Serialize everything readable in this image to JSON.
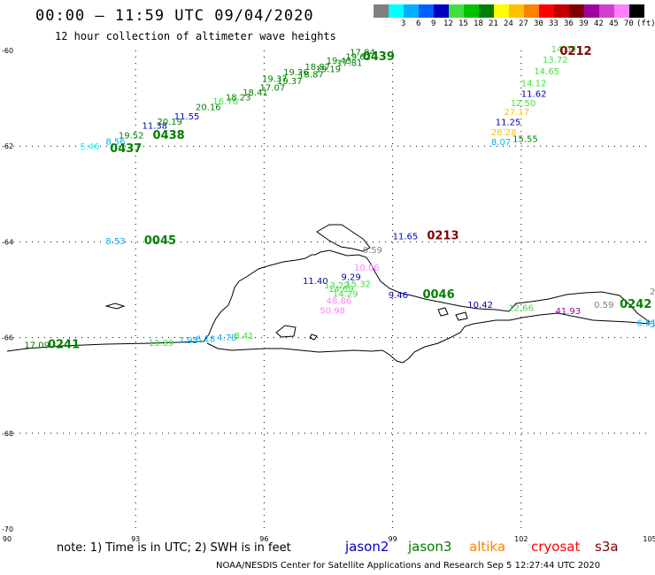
{
  "header": {
    "title": "00:00 – 11:59 UTC 09/04/2020",
    "subtitle": "12 hour collection of altimeter wave heights"
  },
  "colorbar": {
    "unit": "(ft)",
    "bins": [
      {
        "color": "#808080",
        "label": ""
      },
      {
        "color": "#00ffff",
        "label": "3"
      },
      {
        "color": "#00b0ff",
        "label": "6"
      },
      {
        "color": "#0060ff",
        "label": "9"
      },
      {
        "color": "#0000c0",
        "label": "12"
      },
      {
        "color": "#40e040",
        "label": "15"
      },
      {
        "color": "#00c000",
        "label": "18"
      },
      {
        "color": "#008000",
        "label": "21"
      },
      {
        "color": "#ffff00",
        "label": "24"
      },
      {
        "color": "#ffc000",
        "label": "27"
      },
      {
        "color": "#ff8000",
        "label": "30"
      },
      {
        "color": "#ff0000",
        "label": "33"
      },
      {
        "color": "#c00000",
        "label": "36"
      },
      {
        "color": "#800000",
        "label": "39"
      },
      {
        "color": "#a000a0",
        "label": "42"
      },
      {
        "color": "#d040d0",
        "label": "45"
      },
      {
        "color": "#ff80ff",
        "label": "70"
      },
      {
        "color": "#000000",
        "label": ""
      }
    ]
  },
  "axes": {
    "lon_ticks": [
      "90",
      "93",
      "96",
      "99",
      "102",
      "105"
    ],
    "lat_ticks": [
      "-60",
      "-62",
      "-64",
      "-66",
      "-68",
      "-70"
    ],
    "lon_range": [
      90,
      105
    ],
    "lat_range": [
      -60,
      -70
    ]
  },
  "observations": [
    {
      "lon": 90.4,
      "lat": -66.22,
      "v": "17.09",
      "c": "#008000"
    },
    {
      "lon": 93.3,
      "lat": -66.17,
      "v": "13.89",
      "c": "#40e040"
    },
    {
      "lon": 94.0,
      "lat": -66.12,
      "v": "7.95",
      "c": "#00b0ff"
    },
    {
      "lon": 94.4,
      "lat": -66.09,
      "v": "6.18",
      "c": "#00b0ff"
    },
    {
      "lon": 94.9,
      "lat": -66.06,
      "v": "4.78",
      "c": "#00b0ff"
    },
    {
      "lon": 95.3,
      "lat": -66.03,
      "v": "8.41",
      "c": "#40e040"
    },
    {
      "lon": 91.7,
      "lat": -62.07,
      "v": "5.46",
      "c": "#00ffff"
    },
    {
      "lon": 92.3,
      "lat": -61.97,
      "v": "8.56",
      "c": "#00b0ff"
    },
    {
      "lon": 92.6,
      "lat": -61.84,
      "v": "19.52",
      "c": "#008000"
    },
    {
      "lon": 93.15,
      "lat": -61.64,
      "v": "11.38",
      "c": "#0000c0"
    },
    {
      "lon": 93.5,
      "lat": -61.55,
      "v": "20.19",
      "c": "#008000"
    },
    {
      "lon": 93.9,
      "lat": -61.44,
      "v": "11.55",
      "c": "#0000c0"
    },
    {
      "lon": 94.4,
      "lat": -61.25,
      "v": "20.16",
      "c": "#008000"
    },
    {
      "lon": 94.8,
      "lat": -61.13,
      "v": "16.76",
      "c": "#40e040"
    },
    {
      "lon": 95.1,
      "lat": -61.04,
      "v": "18.23",
      "c": "#008000"
    },
    {
      "lon": 95.5,
      "lat": -60.94,
      "v": "18.41",
      "c": "#008000"
    },
    {
      "lon": 95.9,
      "lat": -60.84,
      "v": "17.07",
      "c": "#008000"
    },
    {
      "lon": 96.3,
      "lat": -60.7,
      "v": "19.37",
      "c": "#008000"
    },
    {
      "lon": 96.8,
      "lat": -60.56,
      "v": "18.87",
      "c": "#008000"
    },
    {
      "lon": 97.2,
      "lat": -60.45,
      "v": "19.19",
      "c": "#008000"
    },
    {
      "lon": 97.7,
      "lat": -60.32,
      "v": "17.81",
      "c": "#008000"
    },
    {
      "lon": 95.95,
      "lat": -60.66,
      "v": "19.37",
      "c": "#008000"
    },
    {
      "lon": 96.45,
      "lat": -60.52,
      "v": "19.26",
      "c": "#008000"
    },
    {
      "lon": 96.95,
      "lat": -60.41,
      "v": "18.87",
      "c": "#008000"
    },
    {
      "lon": 97.45,
      "lat": -60.28,
      "v": "19.43",
      "c": "#008000"
    },
    {
      "lon": 97.9,
      "lat": -60.19,
      "v": "19.62",
      "c": "#008000"
    },
    {
      "lon": 98.0,
      "lat": -60.1,
      "v": "17.84",
      "c": "#008000"
    },
    {
      "lon": 101.8,
      "lat": -61.91,
      "v": "15.55",
      "c": "#008000"
    },
    {
      "lon": 101.3,
      "lat": -61.98,
      "v": "8.07",
      "c": "#00b0ff"
    },
    {
      "lon": 101.3,
      "lat": -61.77,
      "v": "28.28",
      "c": "#ffc000"
    },
    {
      "lon": 101.4,
      "lat": -61.56,
      "v": "11.25",
      "c": "#0000c0"
    },
    {
      "lon": 101.6,
      "lat": -61.35,
      "v": "27.17",
      "c": "#ffc000"
    },
    {
      "lon": 101.75,
      "lat": -61.16,
      "v": "12.50",
      "c": "#40e040"
    },
    {
      "lon": 102.0,
      "lat": -60.97,
      "v": "11.62",
      "c": "#0000c0"
    },
    {
      "lon": 102.0,
      "lat": -60.75,
      "v": "14.12",
      "c": "#40e040"
    },
    {
      "lon": 102.3,
      "lat": -60.5,
      "v": "14.65",
      "c": "#40e040"
    },
    {
      "lon": 102.5,
      "lat": -60.26,
      "v": "13.72",
      "c": "#40e040"
    },
    {
      "lon": 102.7,
      "lat": -60.04,
      "v": "14.08",
      "c": "#40e040"
    },
    {
      "lon": 92.3,
      "lat": -64.05,
      "v": "8.53",
      "c": "#00b0ff"
    },
    {
      "lon": 98.3,
      "lat": -64.23,
      "v": "0.59",
      "c": "#808080"
    },
    {
      "lon": 97.8,
      "lat": -64.8,
      "v": "9.29",
      "c": "#0000c0"
    },
    {
      "lon": 98.1,
      "lat": -64.6,
      "v": "10.06",
      "c": "#ff80ff"
    },
    {
      "lon": 96.9,
      "lat": -64.88,
      "v": "11.40",
      "c": "#0000c0"
    },
    {
      "lon": 97.4,
      "lat": -64.97,
      "v": "13.22",
      "c": "#40e040"
    },
    {
      "lon": 97.5,
      "lat": -65.05,
      "v": "14.69",
      "c": "#40e040"
    },
    {
      "lon": 97.9,
      "lat": -64.94,
      "v": "15.32",
      "c": "#40e040"
    },
    {
      "lon": 97.6,
      "lat": -65.15,
      "v": "14.29",
      "c": "#40e040"
    },
    {
      "lon": 97.45,
      "lat": -65.3,
      "v": "48.86",
      "c": "#ff80ff"
    },
    {
      "lon": 97.3,
      "lat": -65.5,
      "v": "50.98",
      "c": "#ff80ff"
    },
    {
      "lon": 98.9,
      "lat": -65.18,
      "v": "9.46",
      "c": "#0000c0"
    },
    {
      "lon": 99.0,
      "lat": -63.95,
      "v": "11.65",
      "c": "#0000c0"
    },
    {
      "lon": 100.75,
      "lat": -65.38,
      "v": "10.42",
      "c": "#0000c0"
    },
    {
      "lon": 101.7,
      "lat": -65.44,
      "v": "12.66",
      "c": "#40e040"
    },
    {
      "lon": 102.8,
      "lat": -65.51,
      "v": "41.93",
      "c": "#a000a0"
    },
    {
      "lon": 103.7,
      "lat": -65.38,
      "v": "0.59",
      "c": "#808080"
    },
    {
      "lon": 104.7,
      "lat": -65.76,
      "v": "6.51",
      "c": "#00b0ff"
    },
    {
      "lon": 105.0,
      "lat": -65.79,
      "v": "5.1",
      "c": "#00b0ff"
    },
    {
      "lon": 105.0,
      "lat": -65.1,
      "v": "2",
      "c": "#808080"
    }
  ],
  "pass_labels": [
    {
      "lon": 90.95,
      "lat": -66.22,
      "t": "0241",
      "c": "#008000"
    },
    {
      "lon": 92.4,
      "lat": -62.13,
      "t": "0437",
      "c": "#008000"
    },
    {
      "lon": 93.4,
      "lat": -61.85,
      "t": "0438",
      "c": "#008000"
    },
    {
      "lon": 98.3,
      "lat": -60.2,
      "t": "0439",
      "c": "#008000"
    },
    {
      "lon": 102.9,
      "lat": -60.09,
      "t": "0212",
      "c": "#800000"
    },
    {
      "lon": 99.8,
      "lat": -63.95,
      "t": "0213",
      "c": "#800000"
    },
    {
      "lon": 93.2,
      "lat": -64.05,
      "t": "0045",
      "c": "#008000"
    },
    {
      "lon": 99.7,
      "lat": -65.18,
      "t": "0046",
      "c": "#008000"
    },
    {
      "lon": 104.3,
      "lat": -65.38,
      "t": "0242",
      "c": "#008000"
    }
  ],
  "note": "note: 1) Time is in UTC; 2) SWH is in feet",
  "legend": [
    {
      "name": "jason2",
      "color": "#0000c0"
    },
    {
      "name": "jason3",
      "color": "#008000"
    },
    {
      "name": "altika",
      "color": "#ff8000"
    },
    {
      "name": "cryosat",
      "color": "#ff0000"
    },
    {
      "name": "s3a",
      "color": "#800000"
    }
  ],
  "footer": "NOAA/NESDIS Center for Satellite Applications and Research   Sep  5 12:27:44 UTC 2020"
}
